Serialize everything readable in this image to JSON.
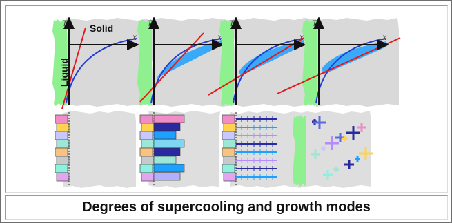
{
  "figure": {
    "panels": [
      {
        "t_axis": "T",
        "x_axis": "x",
        "mode": "planar"
      },
      {
        "t_axis": "T",
        "x_axis": "x",
        "mode": "columnar"
      },
      {
        "t_axis": "T",
        "x_axis": "x",
        "mode": "dendritic"
      },
      {
        "t_axis": "T",
        "x_axis": "x",
        "mode": "equiaxed"
      }
    ],
    "labels": {
      "solid": "Solid",
      "liquid": "Liquid"
    }
  },
  "caption": "Degrees of supercooling and growth modes",
  "colors": {
    "liquid_zone": "#8ef08e",
    "background": "#d9d9d9",
    "curve": "#1f3fd6",
    "undercooled_region": "#1ea0ff",
    "temperature_line": "#e41a1a"
  }
}
